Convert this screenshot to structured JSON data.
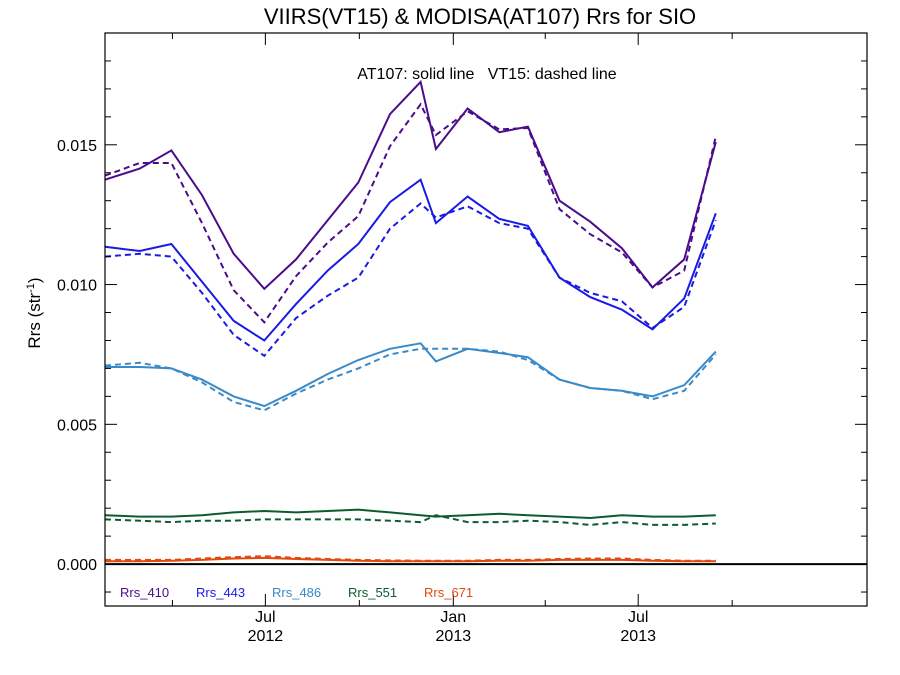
{
  "chart_data": {
    "type": "line",
    "title": "VIIRS(VT15) & MODISA(AT107)  Rrs for SIO",
    "annotation": "AT107: solid line   VT15: dashed line",
    "ylabel_main": "Rrs (str",
    "ylabel_sup": "-1",
    "ylabel_end": ")",
    "ylim": [
      -0.0015,
      0.019
    ],
    "xlim": [
      "2012-01-26",
      "2014-02-10"
    ],
    "yticks": [
      0.0,
      0.005,
      0.01,
      0.015
    ],
    "ytick_labels": [
      "0.000",
      "0.005",
      "0.010",
      "0.015"
    ],
    "xticks": [
      {
        "date": "2012-07-01",
        "line1": "Jul",
        "line2": "2012"
      },
      {
        "date": "2013-01-01",
        "line1": "Jan",
        "line2": "2013"
      },
      {
        "date": "2013-07-01",
        "line1": "Jul",
        "line2": "2013"
      }
    ],
    "minor_xticks": [
      "2012-04-01",
      "2012-10-01",
      "2013-04-01",
      "2013-10-01"
    ],
    "legend_position": "bottom-left",
    "zero_line": true,
    "series": [
      {
        "name": "Rrs_410",
        "color": "#4B0C8C",
        "solid": [
          [
            "2012-01-26",
            0.01375
          ],
          [
            "2012-02-29",
            0.01415
          ],
          [
            "2012-03-31",
            0.0148
          ],
          [
            "2012-04-30",
            0.0132
          ],
          [
            "2012-05-31",
            0.0111
          ],
          [
            "2012-06-30",
            0.00985
          ],
          [
            "2012-07-31",
            0.0109
          ],
          [
            "2012-08-31",
            0.0123
          ],
          [
            "2012-09-30",
            0.01365
          ],
          [
            "2012-10-31",
            0.0161
          ],
          [
            "2012-11-30",
            0.01725
          ],
          [
            "2012-12-15",
            0.01485
          ],
          [
            "2013-01-15",
            0.0163
          ],
          [
            "2013-02-15",
            0.01545
          ],
          [
            "2013-03-15",
            0.01565
          ],
          [
            "2013-04-15",
            0.013
          ],
          [
            "2013-05-15",
            0.01225
          ],
          [
            "2013-06-15",
            0.0113
          ],
          [
            "2013-07-15",
            0.0099
          ],
          [
            "2013-08-15",
            0.0109
          ],
          [
            "2013-09-15",
            0.0151
          ]
        ],
        "dashed": [
          [
            "2012-01-26",
            0.0139
          ],
          [
            "2012-02-29",
            0.01435
          ],
          [
            "2012-03-31",
            0.01435
          ],
          [
            "2012-04-30",
            0.0122
          ],
          [
            "2012-05-31",
            0.0098
          ],
          [
            "2012-06-30",
            0.00865
          ],
          [
            "2012-07-31",
            0.0103
          ],
          [
            "2012-08-31",
            0.0115
          ],
          [
            "2012-09-30",
            0.01245
          ],
          [
            "2012-10-31",
            0.01495
          ],
          [
            "2012-11-30",
            0.01645
          ],
          [
            "2012-12-15",
            0.01535
          ],
          [
            "2013-01-15",
            0.0162
          ],
          [
            "2013-02-15",
            0.01555
          ],
          [
            "2013-03-15",
            0.0156
          ],
          [
            "2013-04-15",
            0.0127
          ],
          [
            "2013-05-15",
            0.0118
          ],
          [
            "2013-06-15",
            0.01115
          ],
          [
            "2013-07-15",
            0.0099
          ],
          [
            "2013-08-15",
            0.0105
          ],
          [
            "2013-09-15",
            0.0153
          ]
        ]
      },
      {
        "name": "Rrs_443",
        "color": "#1A1AE6",
        "solid": [
          [
            "2012-01-26",
            0.01135
          ],
          [
            "2012-02-29",
            0.0112
          ],
          [
            "2012-03-31",
            0.01145
          ],
          [
            "2012-04-30",
            0.0101
          ],
          [
            "2012-05-31",
            0.0087
          ],
          [
            "2012-06-30",
            0.008
          ],
          [
            "2012-07-31",
            0.0093
          ],
          [
            "2012-08-31",
            0.0105
          ],
          [
            "2012-09-30",
            0.01145
          ],
          [
            "2012-10-31",
            0.01295
          ],
          [
            "2012-11-30",
            0.01375
          ],
          [
            "2012-12-15",
            0.0122
          ],
          [
            "2013-01-15",
            0.01315
          ],
          [
            "2013-02-15",
            0.01235
          ],
          [
            "2013-03-15",
            0.0121
          ],
          [
            "2013-04-15",
            0.01025
          ],
          [
            "2013-05-15",
            0.00955
          ],
          [
            "2013-06-15",
            0.0091
          ],
          [
            "2013-07-15",
            0.0084
          ],
          [
            "2013-08-15",
            0.0095
          ],
          [
            "2013-09-15",
            0.01255
          ]
        ],
        "dashed": [
          [
            "2012-01-26",
            0.011
          ],
          [
            "2012-02-29",
            0.0111
          ],
          [
            "2012-03-31",
            0.011
          ],
          [
            "2012-04-30",
            0.0097
          ],
          [
            "2012-05-31",
            0.0082
          ],
          [
            "2012-06-30",
            0.00745
          ],
          [
            "2012-07-31",
            0.0088
          ],
          [
            "2012-08-31",
            0.0096
          ],
          [
            "2012-09-30",
            0.01025
          ],
          [
            "2012-10-31",
            0.012
          ],
          [
            "2012-11-30",
            0.0129
          ],
          [
            "2012-12-15",
            0.0124
          ],
          [
            "2013-01-15",
            0.0128
          ],
          [
            "2013-02-15",
            0.0122
          ],
          [
            "2013-03-15",
            0.012
          ],
          [
            "2013-04-15",
            0.01025
          ],
          [
            "2013-05-15",
            0.0097
          ],
          [
            "2013-06-15",
            0.0094
          ],
          [
            "2013-07-15",
            0.00845
          ],
          [
            "2013-08-15",
            0.0092
          ],
          [
            "2013-09-15",
            0.0123
          ]
        ]
      },
      {
        "name": "Rrs_486",
        "color": "#3A8AC8",
        "solid": [
          [
            "2012-01-26",
            0.00705
          ],
          [
            "2012-02-29",
            0.00705
          ],
          [
            "2012-03-31",
            0.007
          ],
          [
            "2012-04-30",
            0.0066
          ],
          [
            "2012-05-31",
            0.006
          ],
          [
            "2012-06-30",
            0.00565
          ],
          [
            "2012-07-31",
            0.0062
          ],
          [
            "2012-08-31",
            0.0068
          ],
          [
            "2012-09-30",
            0.0073
          ],
          [
            "2012-10-31",
            0.0077
          ],
          [
            "2012-11-30",
            0.0079
          ],
          [
            "2012-12-15",
            0.00725
          ],
          [
            "2013-01-15",
            0.0077
          ],
          [
            "2013-02-15",
            0.00755
          ],
          [
            "2013-03-15",
            0.0074
          ],
          [
            "2013-04-15",
            0.0066
          ],
          [
            "2013-05-15",
            0.0063
          ],
          [
            "2013-06-15",
            0.0062
          ],
          [
            "2013-07-15",
            0.006
          ],
          [
            "2013-08-15",
            0.0064
          ],
          [
            "2013-09-15",
            0.0076
          ]
        ],
        "dashed": [
          [
            "2012-01-26",
            0.0071
          ],
          [
            "2012-02-29",
            0.0072
          ],
          [
            "2012-03-31",
            0.007
          ],
          [
            "2012-04-30",
            0.0065
          ],
          [
            "2012-05-31",
            0.0058
          ],
          [
            "2012-06-30",
            0.0055
          ],
          [
            "2012-07-31",
            0.0061
          ],
          [
            "2012-08-31",
            0.0066
          ],
          [
            "2012-09-30",
            0.007
          ],
          [
            "2012-10-31",
            0.0075
          ],
          [
            "2012-11-30",
            0.0077
          ],
          [
            "2012-12-15",
            0.0077
          ],
          [
            "2013-01-15",
            0.0077
          ],
          [
            "2013-02-15",
            0.0076
          ],
          [
            "2013-03-15",
            0.0073
          ],
          [
            "2013-04-15",
            0.0066
          ],
          [
            "2013-05-15",
            0.0063
          ],
          [
            "2013-06-15",
            0.0062
          ],
          [
            "2013-07-15",
            0.0059
          ],
          [
            "2013-08-15",
            0.0062
          ],
          [
            "2013-09-15",
            0.0075
          ]
        ]
      },
      {
        "name": "Rrs_551",
        "color": "#0D5C2E",
        "solid": [
          [
            "2012-01-26",
            0.00175
          ],
          [
            "2012-02-29",
            0.0017
          ],
          [
            "2012-03-31",
            0.0017
          ],
          [
            "2012-04-30",
            0.00175
          ],
          [
            "2012-05-31",
            0.00185
          ],
          [
            "2012-06-30",
            0.0019
          ],
          [
            "2012-07-31",
            0.00185
          ],
          [
            "2012-08-31",
            0.0019
          ],
          [
            "2012-09-30",
            0.00195
          ],
          [
            "2012-10-31",
            0.00185
          ],
          [
            "2012-11-30",
            0.00175
          ],
          [
            "2012-12-15",
            0.0017
          ],
          [
            "2013-01-15",
            0.00175
          ],
          [
            "2013-02-15",
            0.0018
          ],
          [
            "2013-03-15",
            0.00175
          ],
          [
            "2013-04-15",
            0.0017
          ],
          [
            "2013-05-15",
            0.00165
          ],
          [
            "2013-06-15",
            0.00175
          ],
          [
            "2013-07-15",
            0.0017
          ],
          [
            "2013-08-15",
            0.0017
          ],
          [
            "2013-09-15",
            0.00175
          ]
        ],
        "dashed": [
          [
            "2012-01-26",
            0.0016
          ],
          [
            "2012-02-29",
            0.00155
          ],
          [
            "2012-03-31",
            0.0015
          ],
          [
            "2012-04-30",
            0.00155
          ],
          [
            "2012-05-31",
            0.00155
          ],
          [
            "2012-06-30",
            0.0016
          ],
          [
            "2012-07-31",
            0.0016
          ],
          [
            "2012-08-31",
            0.0016
          ],
          [
            "2012-09-30",
            0.0016
          ],
          [
            "2012-10-31",
            0.00155
          ],
          [
            "2012-11-30",
            0.0015
          ],
          [
            "2012-12-15",
            0.00175
          ],
          [
            "2013-01-15",
            0.0015
          ],
          [
            "2013-02-15",
            0.0015
          ],
          [
            "2013-03-15",
            0.00155
          ],
          [
            "2013-04-15",
            0.0015
          ],
          [
            "2013-05-15",
            0.0014
          ],
          [
            "2013-06-15",
            0.0015
          ],
          [
            "2013-07-15",
            0.0014
          ],
          [
            "2013-08-15",
            0.0014
          ],
          [
            "2013-09-15",
            0.00145
          ]
        ]
      },
      {
        "name": "Rrs_671",
        "color": "#E04A0E",
        "solid": [
          [
            "2012-01-26",
            0.0001
          ],
          [
            "2012-02-29",
            0.0001
          ],
          [
            "2012-03-31",
            0.00012
          ],
          [
            "2012-04-30",
            0.00015
          ],
          [
            "2012-05-31",
            0.0002
          ],
          [
            "2012-06-30",
            0.00022
          ],
          [
            "2012-07-31",
            0.00018
          ],
          [
            "2012-08-31",
            0.00015
          ],
          [
            "2012-09-30",
            0.00012
          ],
          [
            "2012-10-31",
            0.0001
          ],
          [
            "2012-11-30",
            0.0001
          ],
          [
            "2012-12-15",
            0.0001
          ],
          [
            "2013-01-15",
            0.0001
          ],
          [
            "2013-02-15",
            0.00012
          ],
          [
            "2013-03-15",
            0.00012
          ],
          [
            "2013-04-15",
            0.00015
          ],
          [
            "2013-05-15",
            0.00015
          ],
          [
            "2013-06-15",
            0.00015
          ],
          [
            "2013-07-15",
            0.00012
          ],
          [
            "2013-08-15",
            0.0001
          ],
          [
            "2013-09-15",
            0.0001
          ]
        ],
        "dashed": [
          [
            "2012-01-26",
            0.00015
          ],
          [
            "2012-02-29",
            0.00015
          ],
          [
            "2012-03-31",
            0.00015
          ],
          [
            "2012-04-30",
            0.0002
          ],
          [
            "2012-05-31",
            0.00025
          ],
          [
            "2012-06-30",
            0.00028
          ],
          [
            "2012-07-31",
            0.00022
          ],
          [
            "2012-08-31",
            0.00018
          ],
          [
            "2012-09-30",
            0.00015
          ],
          [
            "2012-10-31",
            0.00013
          ],
          [
            "2012-11-30",
            0.00012
          ],
          [
            "2012-12-15",
            0.00012
          ],
          [
            "2013-01-15",
            0.00012
          ],
          [
            "2013-02-15",
            0.00015
          ],
          [
            "2013-03-15",
            0.00015
          ],
          [
            "2013-04-15",
            0.00018
          ],
          [
            "2013-05-15",
            0.0002
          ],
          [
            "2013-06-15",
            0.0002
          ],
          [
            "2013-07-15",
            0.00015
          ],
          [
            "2013-08-15",
            0.00012
          ],
          [
            "2013-09-15",
            0.00012
          ]
        ]
      }
    ]
  }
}
